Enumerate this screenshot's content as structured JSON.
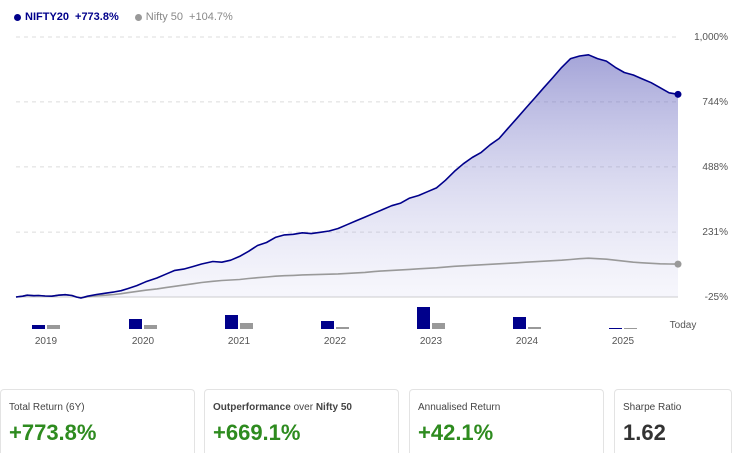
{
  "legend": {
    "items": [
      {
        "name": "NIFTY20",
        "value": "+773.8%",
        "color": "#00008b"
      },
      {
        "name": "Nifty 50",
        "value": "+104.7%",
        "color": "#999999"
      }
    ]
  },
  "chart_data": {
    "type": "line",
    "y_axis": {
      "ticks": [
        "1,000%",
        "744%",
        "488%",
        "231%",
        "-25%"
      ],
      "tick_values": [
        1000,
        744,
        488,
        231,
        -25
      ],
      "range": [
        -25,
        1000
      ],
      "position": "right",
      "grid": true
    },
    "x_axis": {
      "ticks": [
        "2019",
        "2020",
        "2021",
        "2022",
        "2023",
        "2024",
        "2025"
      ],
      "end_label": "Today"
    },
    "series": [
      {
        "name": "NIFTY20",
        "color": "#00008b",
        "fill": "area-gradient",
        "end_value": 773.8,
        "points": [
          [
            0,
            -25
          ],
          [
            0.03,
            -22
          ],
          [
            0.05,
            -18
          ],
          [
            0.08,
            -20
          ],
          [
            0.1,
            -19
          ],
          [
            0.13,
            -21
          ],
          [
            0.16,
            -22
          ],
          [
            0.19,
            -18
          ],
          [
            0.22,
            -16
          ],
          [
            0.25,
            -19
          ],
          [
            0.27,
            -25
          ],
          [
            0.29,
            -29
          ],
          [
            0.32,
            -22
          ],
          [
            0.36,
            -15
          ],
          [
            0.4,
            -10
          ],
          [
            0.44,
            -5
          ],
          [
            0.47,
            0
          ],
          [
            0.5,
            8
          ],
          [
            0.54,
            20
          ],
          [
            0.58,
            35
          ],
          [
            0.63,
            50
          ],
          [
            0.67,
            65
          ],
          [
            0.71,
            80
          ],
          [
            0.75,
            85
          ],
          [
            0.79,
            95
          ],
          [
            0.83,
            105
          ],
          [
            0.88,
            115
          ],
          [
            0.92,
            112
          ],
          [
            0.96,
            120
          ],
          [
            1.0,
            135
          ],
          [
            1.04,
            155
          ],
          [
            1.08,
            178
          ],
          [
            1.12,
            190
          ],
          [
            1.16,
            210
          ],
          [
            1.2,
            220
          ],
          [
            1.24,
            222
          ],
          [
            1.28,
            228
          ],
          [
            1.32,
            225
          ],
          [
            1.36,
            230
          ],
          [
            1.4,
            235
          ],
          [
            1.44,
            245
          ],
          [
            1.48,
            260
          ],
          [
            1.52,
            275
          ],
          [
            1.56,
            290
          ],
          [
            1.6,
            305
          ],
          [
            1.64,
            320
          ],
          [
            1.68,
            335
          ],
          [
            1.72,
            345
          ],
          [
            1.76,
            365
          ],
          [
            1.8,
            375
          ],
          [
            1.84,
            390
          ],
          [
            1.88,
            405
          ],
          [
            1.92,
            435
          ],
          [
            1.96,
            470
          ],
          [
            2.0,
            500
          ],
          [
            2.04,
            525
          ],
          [
            2.08,
            545
          ],
          [
            2.12,
            575
          ],
          [
            2.16,
            600
          ],
          [
            2.2,
            640
          ],
          [
            2.24,
            680
          ],
          [
            2.28,
            720
          ],
          [
            2.32,
            760
          ],
          [
            2.36,
            800
          ],
          [
            2.4,
            840
          ],
          [
            2.44,
            880
          ],
          [
            2.48,
            915
          ],
          [
            2.52,
            925
          ],
          [
            2.56,
            930
          ],
          [
            2.6,
            915
          ],
          [
            2.64,
            905
          ],
          [
            2.68,
            880
          ],
          [
            2.72,
            860
          ],
          [
            2.76,
            850
          ],
          [
            2.8,
            835
          ],
          [
            2.84,
            820
          ],
          [
            2.88,
            800
          ],
          [
            2.92,
            780
          ],
          [
            2.96,
            774
          ]
        ]
      },
      {
        "name": "Nifty 50",
        "color": "#999999",
        "fill": "none",
        "end_value": 104.7,
        "points": [
          [
            0,
            -25
          ],
          [
            0.03,
            -22
          ],
          [
            0.05,
            -18
          ],
          [
            0.08,
            -20
          ],
          [
            0.1,
            -19
          ],
          [
            0.13,
            -21
          ],
          [
            0.16,
            -22
          ],
          [
            0.19,
            -18
          ],
          [
            0.22,
            -16
          ],
          [
            0.25,
            -19
          ],
          [
            0.27,
            -25
          ],
          [
            0.29,
            -29
          ],
          [
            0.32,
            -24
          ],
          [
            0.36,
            -20
          ],
          [
            0.4,
            -18
          ],
          [
            0.44,
            -15
          ],
          [
            0.47,
            -12
          ],
          [
            0.5,
            -8
          ],
          [
            0.54,
            -3
          ],
          [
            0.58,
            2
          ],
          [
            0.63,
            7
          ],
          [
            0.67,
            12
          ],
          [
            0.71,
            17
          ],
          [
            0.75,
            22
          ],
          [
            0.79,
            27
          ],
          [
            0.83,
            32
          ],
          [
            0.88,
            37
          ],
          [
            0.92,
            40
          ],
          [
            0.96,
            42
          ],
          [
            1.0,
            44
          ],
          [
            1.04,
            48
          ],
          [
            1.08,
            51
          ],
          [
            1.12,
            54
          ],
          [
            1.16,
            57
          ],
          [
            1.2,
            59
          ],
          [
            1.24,
            60
          ],
          [
            1.28,
            62
          ],
          [
            1.32,
            63
          ],
          [
            1.36,
            64
          ],
          [
            1.4,
            65
          ],
          [
            1.44,
            66
          ],
          [
            1.48,
            68
          ],
          [
            1.52,
            70
          ],
          [
            1.56,
            72
          ],
          [
            1.6,
            75
          ],
          [
            1.64,
            78
          ],
          [
            1.68,
            80
          ],
          [
            1.72,
            82
          ],
          [
            1.76,
            84
          ],
          [
            1.8,
            86
          ],
          [
            1.84,
            88
          ],
          [
            1.88,
            90
          ],
          [
            1.92,
            93
          ],
          [
            1.96,
            96
          ],
          [
            2.0,
            98
          ],
          [
            2.04,
            100
          ],
          [
            2.08,
            102
          ],
          [
            2.12,
            104
          ],
          [
            2.16,
            106
          ],
          [
            2.2,
            108
          ],
          [
            2.24,
            110
          ],
          [
            2.28,
            112
          ],
          [
            2.32,
            114
          ],
          [
            2.36,
            116
          ],
          [
            2.4,
            118
          ],
          [
            2.44,
            120
          ],
          [
            2.48,
            123
          ],
          [
            2.52,
            126
          ],
          [
            2.56,
            128
          ],
          [
            2.6,
            126
          ],
          [
            2.64,
            124
          ],
          [
            2.68,
            120
          ],
          [
            2.72,
            116
          ],
          [
            2.76,
            112
          ],
          [
            2.8,
            110
          ],
          [
            2.84,
            108
          ],
          [
            2.88,
            106
          ],
          [
            2.92,
            105
          ],
          [
            2.96,
            104.7
          ]
        ]
      }
    ],
    "yearly_bars": {
      "categories": [
        "2019",
        "2020",
        "2021",
        "2022",
        "2023",
        "2024",
        "2025"
      ],
      "series": [
        {
          "name": "NIFTY20",
          "color": "#00008b",
          "values": [
            2,
            5,
            7,
            4,
            11,
            6,
            0.5
          ]
        },
        {
          "name": "Nifty 50",
          "color": "#999999",
          "values": [
            2,
            2,
            3,
            1,
            3,
            1,
            0.5
          ]
        }
      ]
    }
  },
  "cards": [
    {
      "label": "Total Return (6Y)",
      "value": "+773.8%",
      "tone": "positive"
    },
    {
      "label_bold": "Outperformance",
      "label_mid": " over ",
      "label_bold2": "Nifty 50",
      "value": "+669.1%",
      "tone": "positive"
    },
    {
      "label": "Annualised Return",
      "value": "+42.1%",
      "tone": "positive"
    },
    {
      "label": "Sharpe Ratio",
      "value": "1.62",
      "tone": "neutral"
    }
  ]
}
